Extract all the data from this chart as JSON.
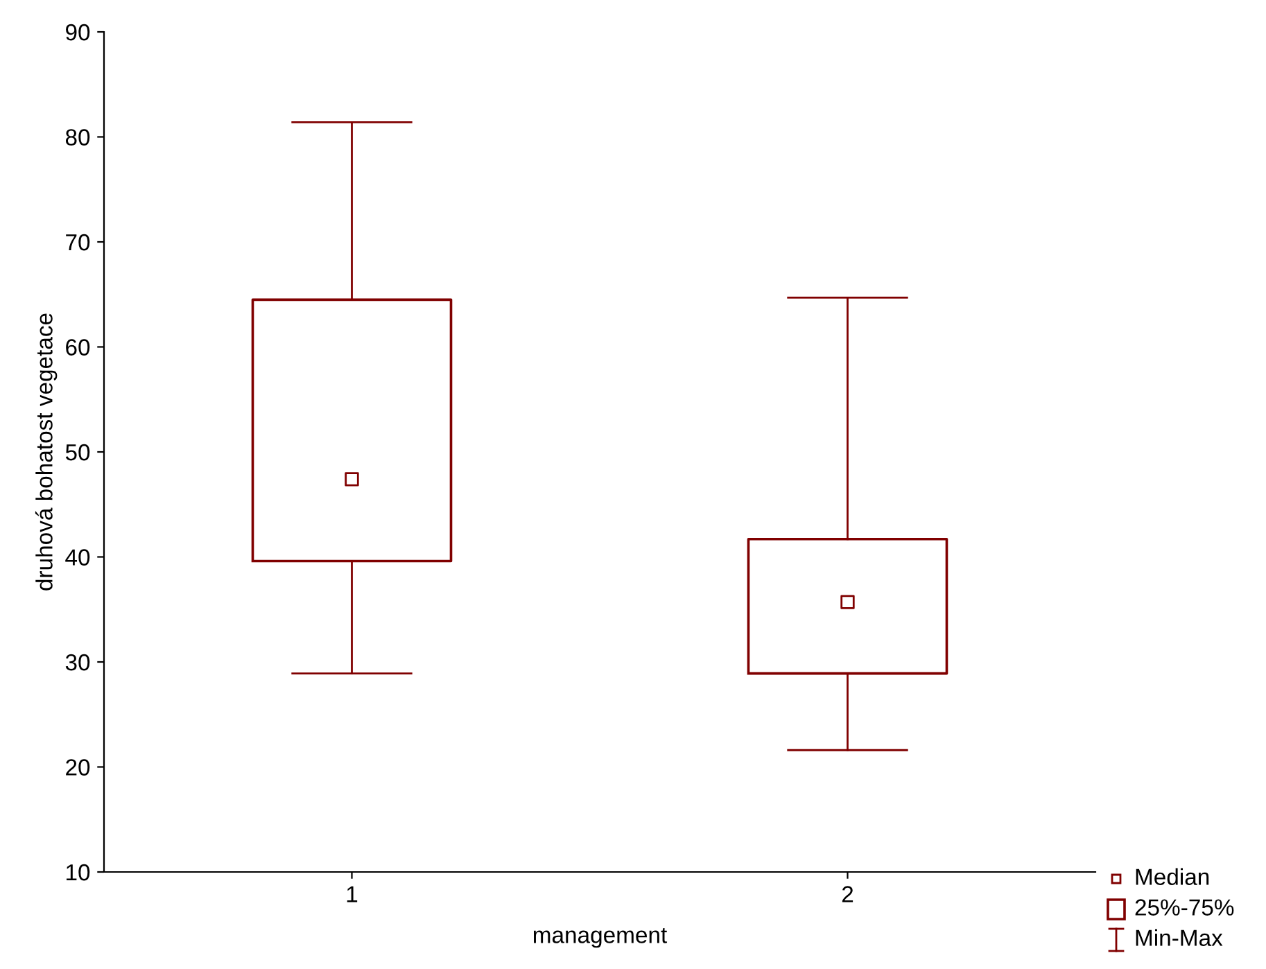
{
  "chart_data": {
    "type": "box",
    "xlabel": "management",
    "ylabel": "druhová bohatost vegetace",
    "categories": [
      "1",
      "2"
    ],
    "boxes": [
      {
        "low": 28.9,
        "q1": 39.6,
        "median": 47.4,
        "q3": 64.5,
        "high": 81.4
      },
      {
        "low": 21.6,
        "q1": 28.9,
        "median": 35.7,
        "q3": 41.7,
        "high": 64.7
      }
    ],
    "color": "#800000",
    "ylim": [
      10,
      90
    ],
    "yticks": [
      10,
      20,
      30,
      40,
      50,
      60,
      70,
      80,
      90
    ],
    "grid": false,
    "marker": "square",
    "annotations": [
      "Median",
      "25%-75%",
      "Min-Max"
    ]
  }
}
